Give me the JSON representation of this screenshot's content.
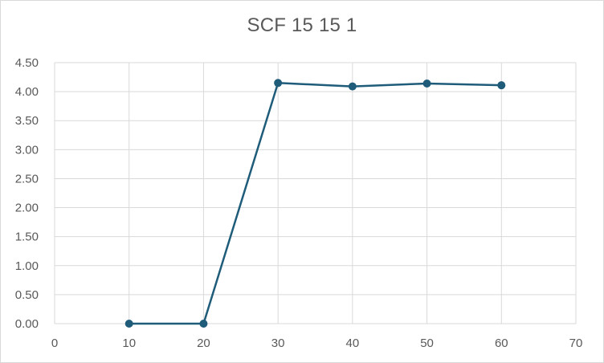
{
  "chart_data": {
    "type": "scatter",
    "title": "SCF 15 15 1",
    "xlabel": "",
    "ylabel": "",
    "xlim": [
      0,
      70
    ],
    "ylim": [
      0,
      4.5
    ],
    "x_ticks": [
      "0",
      "10",
      "20",
      "30",
      "40",
      "50",
      "60",
      "70"
    ],
    "y_ticks": [
      "0.00",
      "0.50",
      "1.00",
      "1.50",
      "2.00",
      "2.50",
      "3.00",
      "3.50",
      "4.00",
      "4.50"
    ],
    "grid": true,
    "legend": "none",
    "lines": true,
    "markers": true,
    "series_color": "#1f5c7a",
    "series": [
      {
        "x": [
          10,
          20,
          30,
          40,
          50,
          60
        ],
        "y": [
          0.0,
          0.0,
          4.15,
          4.09,
          4.14,
          4.11
        ]
      }
    ]
  }
}
